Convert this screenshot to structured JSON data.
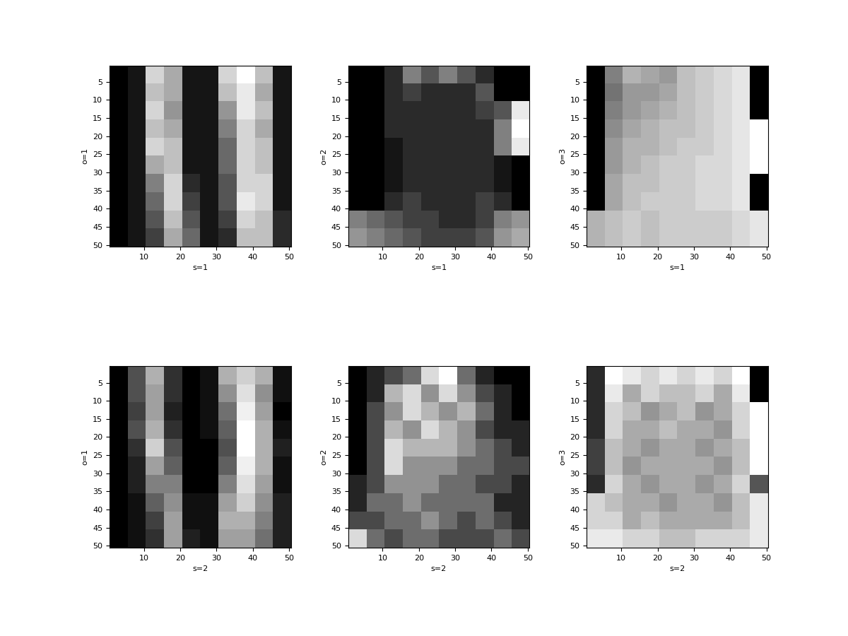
{
  "chart_data": [
    {
      "type": "heatmap",
      "xlabel": "s=1",
      "ylabel": "o=1",
      "xlim": [
        0.5,
        50.5
      ],
      "ylim": [
        50.5,
        0.5
      ],
      "xticks": [
        10,
        20,
        30,
        40,
        50
      ],
      "yticks": [
        5,
        10,
        15,
        20,
        25,
        30,
        35,
        40,
        45,
        50
      ],
      "cells": [
        [
          0,
          0.05,
          0.5,
          0.4,
          0.05,
          0.05,
          0.5,
          0.6,
          0.45,
          0.05
        ],
        [
          0,
          0.05,
          0.45,
          0.4,
          0.05,
          0.05,
          0.45,
          0.55,
          0.4,
          0.05
        ],
        [
          0,
          0.05,
          0.5,
          0.35,
          0.05,
          0.05,
          0.35,
          0.55,
          0.45,
          0.05
        ],
        [
          0,
          0.05,
          0.45,
          0.4,
          0.05,
          0.05,
          0.3,
          0.5,
          0.4,
          0.05
        ],
        [
          0,
          0.05,
          0.5,
          0.45,
          0.05,
          0.05,
          0.25,
          0.5,
          0.45,
          0.05
        ],
        [
          0,
          0.05,
          0.4,
          0.45,
          0.05,
          0.05,
          0.25,
          0.5,
          0.45,
          0.05
        ],
        [
          0,
          0.05,
          0.3,
          0.5,
          0.1,
          0.05,
          0.2,
          0.5,
          0.5,
          0.05
        ],
        [
          0,
          0.05,
          0.25,
          0.5,
          0.15,
          0.05,
          0.2,
          0.55,
          0.5,
          0.05
        ],
        [
          0,
          0.05,
          0.2,
          0.45,
          0.2,
          0.05,
          0.15,
          0.5,
          0.45,
          0.1
        ],
        [
          0,
          0.05,
          0.15,
          0.4,
          0.25,
          0.05,
          0.1,
          0.45,
          0.45,
          0.1
        ]
      ]
    },
    {
      "type": "heatmap",
      "xlabel": "s=1",
      "ylabel": "o=2",
      "xlim": [
        0.5,
        50.5
      ],
      "ylim": [
        50.5,
        0.5
      ],
      "xticks": [
        10,
        20,
        30,
        40,
        50
      ],
      "yticks": [
        5,
        10,
        15,
        20,
        25,
        30,
        35,
        40,
        45,
        50
      ],
      "cells": [
        [
          0,
          0,
          0.1,
          0.3,
          0.2,
          0.3,
          0.2,
          0.1,
          0,
          0
        ],
        [
          0,
          0,
          0.1,
          0.15,
          0.1,
          0.1,
          0.1,
          0.2,
          0,
          0
        ],
        [
          0,
          0,
          0.1,
          0.1,
          0.1,
          0.1,
          0.1,
          0.15,
          0.2,
          0.55
        ],
        [
          0,
          0,
          0.1,
          0.1,
          0.1,
          0.1,
          0.1,
          0.1,
          0.3,
          0.6
        ],
        [
          0,
          0,
          0.05,
          0.1,
          0.1,
          0.1,
          0.1,
          0.1,
          0.3,
          0.55
        ],
        [
          0,
          0,
          0.05,
          0.1,
          0.1,
          0.1,
          0.1,
          0.1,
          0.05,
          0
        ],
        [
          0,
          0,
          0.05,
          0.1,
          0.1,
          0.1,
          0.1,
          0.1,
          0.05,
          0
        ],
        [
          0,
          0,
          0.1,
          0.15,
          0.1,
          0.1,
          0.1,
          0.15,
          0.1,
          0
        ],
        [
          0.3,
          0.25,
          0.2,
          0.15,
          0.15,
          0.1,
          0.1,
          0.15,
          0.3,
          0.35
        ],
        [
          0.35,
          0.3,
          0.25,
          0.2,
          0.15,
          0.15,
          0.15,
          0.2,
          0.35,
          0.4
        ]
      ]
    },
    {
      "type": "heatmap",
      "xlabel": "s=1",
      "ylabel": "o=3",
      "xlim": [
        0.5,
        50.5
      ],
      "ylim": [
        50.5,
        0.5
      ],
      "xticks": [
        10,
        20,
        30,
        40,
        50
      ],
      "yticks": [
        5,
        10,
        15,
        20,
        25,
        30,
        35,
        40,
        45,
        50
      ],
      "cells": [
        [
          0,
          0.5,
          0.7,
          0.65,
          0.6,
          0.75,
          0.8,
          0.85,
          0.9,
          0
        ],
        [
          0,
          0.45,
          0.6,
          0.6,
          0.65,
          0.75,
          0.8,
          0.85,
          0.9,
          0
        ],
        [
          0,
          0.5,
          0.6,
          0.65,
          0.7,
          0.75,
          0.8,
          0.85,
          0.9,
          0
        ],
        [
          0,
          0.55,
          0.65,
          0.7,
          0.75,
          0.75,
          0.8,
          0.85,
          0.9,
          1
        ],
        [
          0,
          0.6,
          0.7,
          0.7,
          0.75,
          0.8,
          0.8,
          0.85,
          0.9,
          1
        ],
        [
          0,
          0.6,
          0.7,
          0.75,
          0.8,
          0.8,
          0.85,
          0.85,
          0.9,
          1
        ],
        [
          0,
          0.65,
          0.75,
          0.75,
          0.8,
          0.8,
          0.85,
          0.85,
          0.9,
          0
        ],
        [
          0,
          0.65,
          0.75,
          0.8,
          0.8,
          0.8,
          0.85,
          0.85,
          0.9,
          0
        ],
        [
          0.7,
          0.75,
          0.8,
          0.75,
          0.8,
          0.8,
          0.8,
          0.8,
          0.85,
          0.9
        ],
        [
          0.7,
          0.75,
          0.8,
          0.75,
          0.8,
          0.8,
          0.8,
          0.8,
          0.85,
          0.9
        ]
      ]
    },
    {
      "type": "heatmap",
      "xlabel": "s=2",
      "ylabel": "o=1",
      "xlim": [
        0.5,
        50.5
      ],
      "ylim": [
        50.5,
        0.5
      ],
      "xticks": [
        10,
        20,
        30,
        40,
        50
      ],
      "yticks": [
        5,
        10,
        15,
        20,
        25,
        30,
        35,
        40,
        45,
        50
      ],
      "cells": [
        [
          0.05,
          0.3,
          0.6,
          0.2,
          0.05,
          0.1,
          0.6,
          0.7,
          0.6,
          0.1
        ],
        [
          0.05,
          0.3,
          0.55,
          0.2,
          0.05,
          0.1,
          0.5,
          0.75,
          0.5,
          0.1
        ],
        [
          0.05,
          0.25,
          0.55,
          0.15,
          0.05,
          0.1,
          0.4,
          0.8,
          0.55,
          0.05
        ],
        [
          0.05,
          0.3,
          0.6,
          0.2,
          0.05,
          0.1,
          0.35,
          0.85,
          0.6,
          0.1
        ],
        [
          0.05,
          0.2,
          0.7,
          0.3,
          0.05,
          0.05,
          0.3,
          0.85,
          0.6,
          0.15
        ],
        [
          0.05,
          0.15,
          0.55,
          0.35,
          0.05,
          0.05,
          0.35,
          0.8,
          0.6,
          0.1
        ],
        [
          0.05,
          0.15,
          0.45,
          0.45,
          0.05,
          0.05,
          0.45,
          0.75,
          0.55,
          0.1
        ],
        [
          0.05,
          0.1,
          0.35,
          0.5,
          0.1,
          0.1,
          0.55,
          0.7,
          0.5,
          0.15
        ],
        [
          0.05,
          0.1,
          0.25,
          0.55,
          0.1,
          0.1,
          0.6,
          0.6,
          0.45,
          0.15
        ],
        [
          0.05,
          0.1,
          0.2,
          0.55,
          0.15,
          0.1,
          0.55,
          0.55,
          0.4,
          0.15
        ]
      ]
    },
    {
      "type": "heatmap",
      "xlabel": "s=2",
      "ylabel": "o=2",
      "xlim": [
        0.5,
        50.5
      ],
      "ylim": [
        50.5,
        0.5
      ],
      "xticks": [
        10,
        20,
        30,
        40,
        50
      ],
      "yticks": [
        5,
        10,
        15,
        20,
        25,
        30,
        35,
        40,
        45,
        50
      ],
      "cells": [
        [
          0,
          0.05,
          0.1,
          0.15,
          0.3,
          0.35,
          0.15,
          0.05,
          0,
          0
        ],
        [
          0,
          0.05,
          0.25,
          0.3,
          0.2,
          0.3,
          0.2,
          0.1,
          0.05,
          0
        ],
        [
          0,
          0.1,
          0.2,
          0.3,
          0.25,
          0.2,
          0.25,
          0.15,
          0.05,
          0
        ],
        [
          0,
          0.1,
          0.25,
          0.2,
          0.3,
          0.25,
          0.2,
          0.1,
          0.05,
          0.05
        ],
        [
          0,
          0.1,
          0.3,
          0.25,
          0.25,
          0.25,
          0.2,
          0.15,
          0.1,
          0.05
        ],
        [
          0,
          0.1,
          0.3,
          0.2,
          0.2,
          0.2,
          0.15,
          0.15,
          0.1,
          0.1
        ],
        [
          0.05,
          0.1,
          0.2,
          0.2,
          0.2,
          0.15,
          0.15,
          0.1,
          0.1,
          0.05
        ],
        [
          0.05,
          0.15,
          0.15,
          0.2,
          0.15,
          0.15,
          0.15,
          0.15,
          0.05,
          0.05
        ],
        [
          0.1,
          0.1,
          0.15,
          0.15,
          0.2,
          0.15,
          0.1,
          0.15,
          0.1,
          0.05
        ],
        [
          0.3,
          0.15,
          0.1,
          0.15,
          0.15,
          0.1,
          0.1,
          0.1,
          0.15,
          0.1
        ]
      ]
    },
    {
      "type": "heatmap",
      "xlabel": "s=2",
      "ylabel": "o=3",
      "xlim": [
        0.5,
        50.5
      ],
      "ylim": [
        50.5,
        0.5
      ],
      "xticks": [
        10,
        20,
        30,
        40,
        50
      ],
      "yticks": [
        5,
        10,
        15,
        20,
        25,
        30,
        35,
        40,
        45,
        50
      ],
      "cells": [
        [
          0.4,
          0.9,
          0.85,
          0.8,
          0.85,
          0.8,
          0.85,
          0.8,
          0.9,
          0.3
        ],
        [
          0.4,
          0.85,
          0.7,
          0.8,
          0.75,
          0.75,
          0.8,
          0.7,
          0.85,
          0.3
        ],
        [
          0.4,
          0.8,
          0.75,
          0.65,
          0.7,
          0.75,
          0.65,
          0.7,
          0.8,
          0.9
        ],
        [
          0.4,
          0.8,
          0.7,
          0.7,
          0.75,
          0.7,
          0.7,
          0.65,
          0.8,
          0.9
        ],
        [
          0.45,
          0.75,
          0.7,
          0.65,
          0.7,
          0.7,
          0.65,
          0.7,
          0.75,
          0.9
        ],
        [
          0.45,
          0.75,
          0.65,
          0.7,
          0.7,
          0.7,
          0.7,
          0.65,
          0.75,
          0.9
        ],
        [
          0.4,
          0.8,
          0.7,
          0.65,
          0.7,
          0.7,
          0.65,
          0.7,
          0.8,
          0.5
        ],
        [
          0.8,
          0.75,
          0.7,
          0.7,
          0.65,
          0.7,
          0.7,
          0.65,
          0.75,
          0.85
        ],
        [
          0.8,
          0.8,
          0.7,
          0.75,
          0.7,
          0.7,
          0.7,
          0.7,
          0.75,
          0.85
        ],
        [
          0.85,
          0.85,
          0.8,
          0.8,
          0.75,
          0.75,
          0.8,
          0.8,
          0.8,
          0.85
        ]
      ]
    }
  ]
}
